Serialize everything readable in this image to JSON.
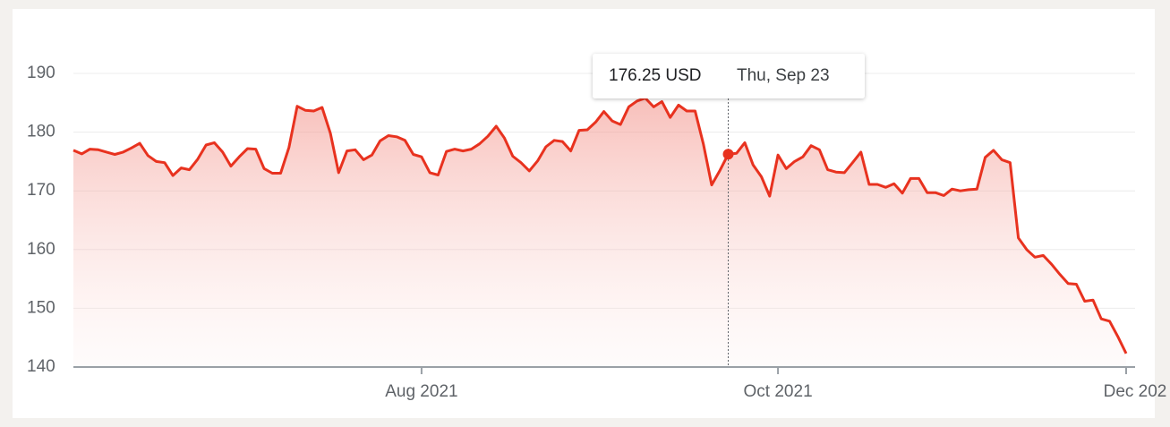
{
  "chart_data": {
    "type": "line",
    "series": [
      {
        "color": "#e8321f",
        "values": [
          176.9,
          176.3,
          177.1,
          177.0,
          176.6,
          176.2,
          176.6,
          177.3,
          178.1,
          176.0,
          175.0,
          174.8,
          172.6,
          173.9,
          173.6,
          175.4,
          177.8,
          178.2,
          176.6,
          174.2,
          175.8,
          177.2,
          177.1,
          173.8,
          173.0,
          173.0,
          177.4,
          184.4,
          183.7,
          183.6,
          184.2,
          179.8,
          173.1,
          176.8,
          177.0,
          175.3,
          176.1,
          178.5,
          179.4,
          179.2,
          178.6,
          176.2,
          175.8,
          173.1,
          172.7,
          176.7,
          177.1,
          176.8,
          177.1,
          178.0,
          179.3,
          181.0,
          179.0,
          175.9,
          174.8,
          173.4,
          175.1,
          177.5,
          178.6,
          178.4,
          176.8,
          180.3,
          180.4,
          181.7,
          183.5,
          181.9,
          181.3,
          184.3,
          185.3,
          185.8,
          184.3,
          185.2,
          182.5,
          184.6,
          183.6,
          183.6,
          178.0,
          171.0,
          173.5,
          176.25,
          176.4,
          178.2,
          174.4,
          172.4,
          169.1,
          176.1,
          173.8,
          175.0,
          175.8,
          177.7,
          177.0,
          173.6,
          173.2,
          173.1,
          174.8,
          176.6,
          171.1,
          171.1,
          170.6,
          171.2,
          169.6,
          172.1,
          172.1,
          169.7,
          169.7,
          169.2,
          170.3,
          170.0,
          170.2,
          170.3,
          175.7,
          176.9,
          175.3,
          174.8,
          162.0,
          160.0,
          158.7,
          159.0,
          157.5,
          155.8,
          154.2,
          154.1,
          151.2,
          151.4,
          148.2,
          147.8,
          145.2,
          142.3
        ]
      }
    ],
    "xlim": [
      0,
      127
    ],
    "xticks": [
      {
        "value": 42,
        "label": "Aug 2021"
      },
      {
        "value": 85,
        "label": "Oct 2021"
      },
      {
        "value": 127,
        "label": "Dec 202"
      }
    ],
    "ylim": [
      140,
      190
    ],
    "yticks": [
      140,
      150,
      160,
      170,
      180,
      190
    ],
    "grid": true,
    "tooltip": {
      "x": 79,
      "label": "176.25 USD",
      "date": "Thu, Sep 23"
    }
  }
}
